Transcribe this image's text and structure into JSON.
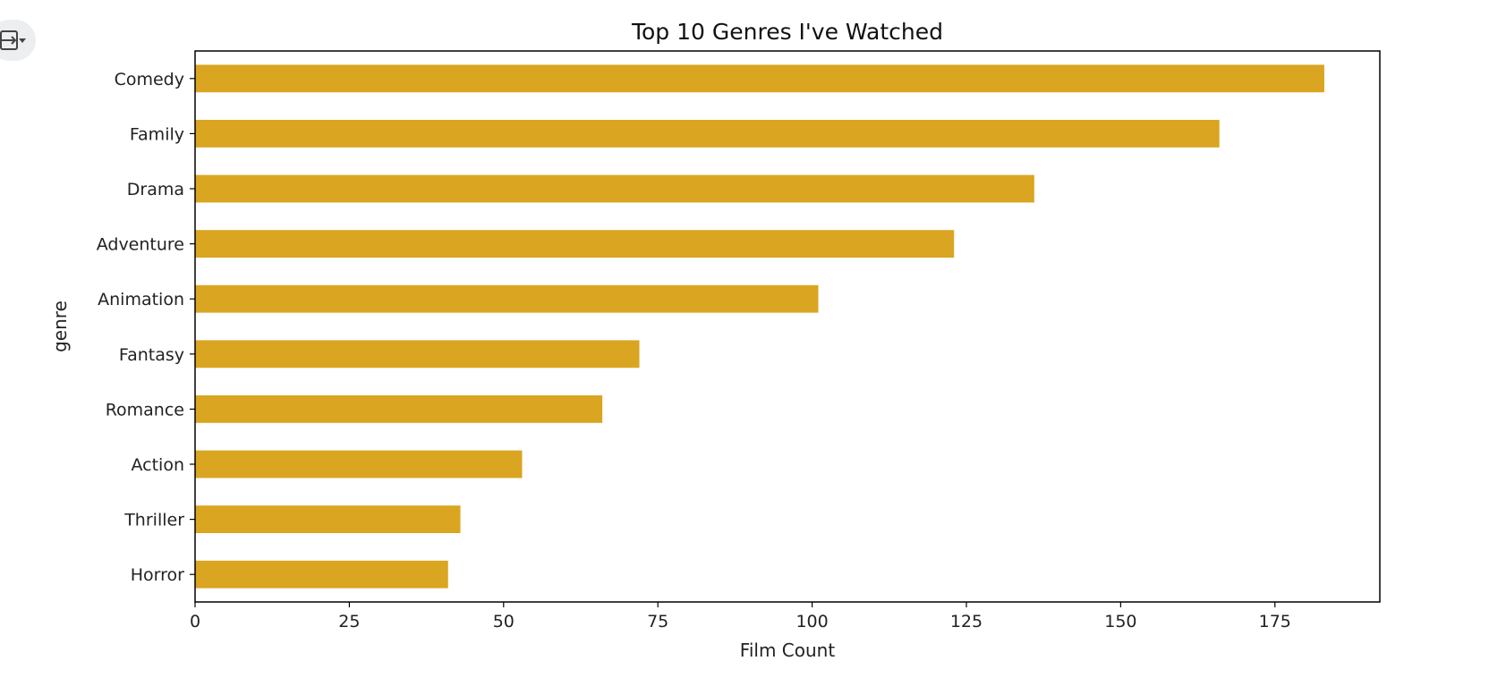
{
  "toolbar": {
    "icon": "filter-menu-icon"
  },
  "chart_data": {
    "type": "bar",
    "orientation": "horizontal",
    "title": "Top 10 Genres I've Watched",
    "xlabel": "Film Count",
    "ylabel": "genre",
    "categories": [
      "Comedy",
      "Family",
      "Drama",
      "Adventure",
      "Animation",
      "Fantasy",
      "Romance",
      "Action",
      "Thriller",
      "Horror"
    ],
    "values": [
      183,
      166,
      136,
      123,
      101,
      72,
      66,
      53,
      43,
      41
    ],
    "xlim": [
      0,
      192
    ],
    "xticks": [
      0,
      25,
      50,
      75,
      100,
      125,
      150,
      175
    ],
    "grid": false,
    "bar_color": "#daa520"
  }
}
